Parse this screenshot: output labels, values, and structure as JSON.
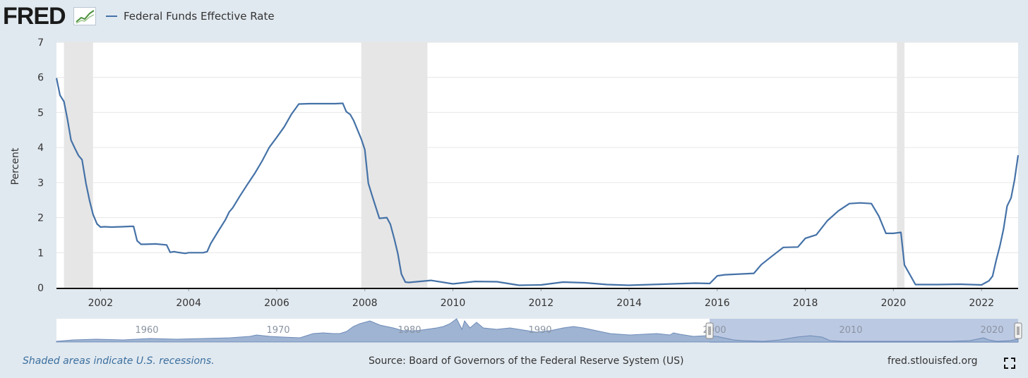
{
  "header": {
    "logo": "FRED",
    "logo_icon": "line-chart-icon"
  },
  "footer": {
    "note": "Shaded areas indicate U.S. recessions.",
    "source": "Source: Board of Governors of the Federal Reserve System (US)",
    "site": "fred.stlouisfed.org",
    "fullscreen_icon": "fullscreen-icon"
  },
  "colors": {
    "series": "#4572a7",
    "recession": "#e6e6e6",
    "background": "#e1e9f0",
    "navigator_fill": "#9fb4d2",
    "navigator_selection": "#bcc9e2"
  },
  "chart_data": {
    "type": "line",
    "title": "",
    "xlabel": "",
    "ylabel": "Percent",
    "ylim": [
      0,
      7
    ],
    "yticks": [
      "0",
      "1",
      "2",
      "3",
      "4",
      "5",
      "6",
      "7"
    ],
    "xlim": [
      2001.0,
      2022.83
    ],
    "xticks": [
      "2002",
      "2004",
      "2006",
      "2008",
      "2010",
      "2012",
      "2014",
      "2016",
      "2018",
      "2020",
      "2022"
    ],
    "grid": true,
    "legend": "top-left",
    "recessions": [
      [
        2001.17,
        2001.83
      ],
      [
        2007.92,
        2009.42
      ],
      [
        2020.08,
        2020.25
      ]
    ],
    "series": [
      {
        "name": "Federal Funds Effective Rate",
        "x": [
          2001.0,
          2001.08,
          2001.17,
          2001.25,
          2001.33,
          2001.42,
          2001.5,
          2001.58,
          2001.67,
          2001.75,
          2001.83,
          2001.92,
          2002.0,
          2002.08,
          2002.25,
          2002.5,
          2002.67,
          2002.75,
          2002.83,
          2002.92,
          2003.0,
          2003.25,
          2003.5,
          2003.58,
          2003.67,
          2003.75,
          2003.92,
          2004.0,
          2004.17,
          2004.33,
          2004.42,
          2004.5,
          2004.67,
          2004.83,
          2004.92,
          2005.0,
          2005.17,
          2005.33,
          2005.5,
          2005.67,
          2005.83,
          2006.0,
          2006.17,
          2006.33,
          2006.5,
          2006.75,
          2007.0,
          2007.33,
          2007.5,
          2007.58,
          2007.67,
          2007.75,
          2007.92,
          2008.0,
          2008.08,
          2008.17,
          2008.33,
          2008.5,
          2008.58,
          2008.67,
          2008.75,
          2008.83,
          2008.92,
          2009.0,
          2009.5,
          2010.0,
          2010.5,
          2011.0,
          2011.5,
          2012.0,
          2012.5,
          2013.0,
          2013.5,
          2014.0,
          2014.5,
          2015.0,
          2015.5,
          2015.83,
          2016.0,
          2016.17,
          2016.5,
          2016.83,
          2017.0,
          2017.25,
          2017.5,
          2017.83,
          2018.0,
          2018.25,
          2018.5,
          2018.75,
          2019.0,
          2019.25,
          2019.5,
          2019.67,
          2019.83,
          2020.0,
          2020.17,
          2020.25,
          2020.5,
          2021.0,
          2021.5,
          2022.0,
          2022.17,
          2022.25,
          2022.33,
          2022.42,
          2022.5,
          2022.58,
          2022.67,
          2022.75,
          2022.83
        ],
        "values": [
          5.98,
          5.49,
          5.31,
          4.8,
          4.21,
          3.97,
          3.77,
          3.65,
          2.97,
          2.49,
          2.09,
          1.82,
          1.73,
          1.74,
          1.73,
          1.74,
          1.75,
          1.75,
          1.34,
          1.24,
          1.24,
          1.25,
          1.22,
          1.01,
          1.03,
          1.01,
          0.98,
          1.0,
          1.0,
          1.0,
          1.03,
          1.26,
          1.61,
          1.93,
          2.16,
          2.28,
          2.63,
          2.94,
          3.26,
          3.62,
          4.0,
          4.29,
          4.59,
          4.94,
          5.24,
          5.25,
          5.25,
          5.25,
          5.26,
          5.02,
          4.94,
          4.76,
          4.24,
          3.94,
          2.98,
          2.61,
          1.98,
          2.0,
          1.81,
          1.39,
          0.97,
          0.39,
          0.16,
          0.15,
          0.21,
          0.11,
          0.18,
          0.17,
          0.07,
          0.08,
          0.16,
          0.14,
          0.09,
          0.07,
          0.09,
          0.11,
          0.13,
          0.12,
          0.34,
          0.37,
          0.39,
          0.41,
          0.66,
          0.91,
          1.15,
          1.16,
          1.41,
          1.51,
          1.91,
          2.19,
          2.4,
          2.42,
          2.4,
          2.04,
          1.55,
          1.55,
          1.58,
          0.65,
          0.09,
          0.09,
          0.1,
          0.08,
          0.2,
          0.33,
          0.77,
          1.21,
          1.68,
          2.33,
          2.56,
          3.08,
          3.78
        ]
      }
    ]
  },
  "navigator": {
    "labels": [
      "1960",
      "1970",
      "1980",
      "1990",
      "2000",
      "2010",
      "2020"
    ]
  }
}
